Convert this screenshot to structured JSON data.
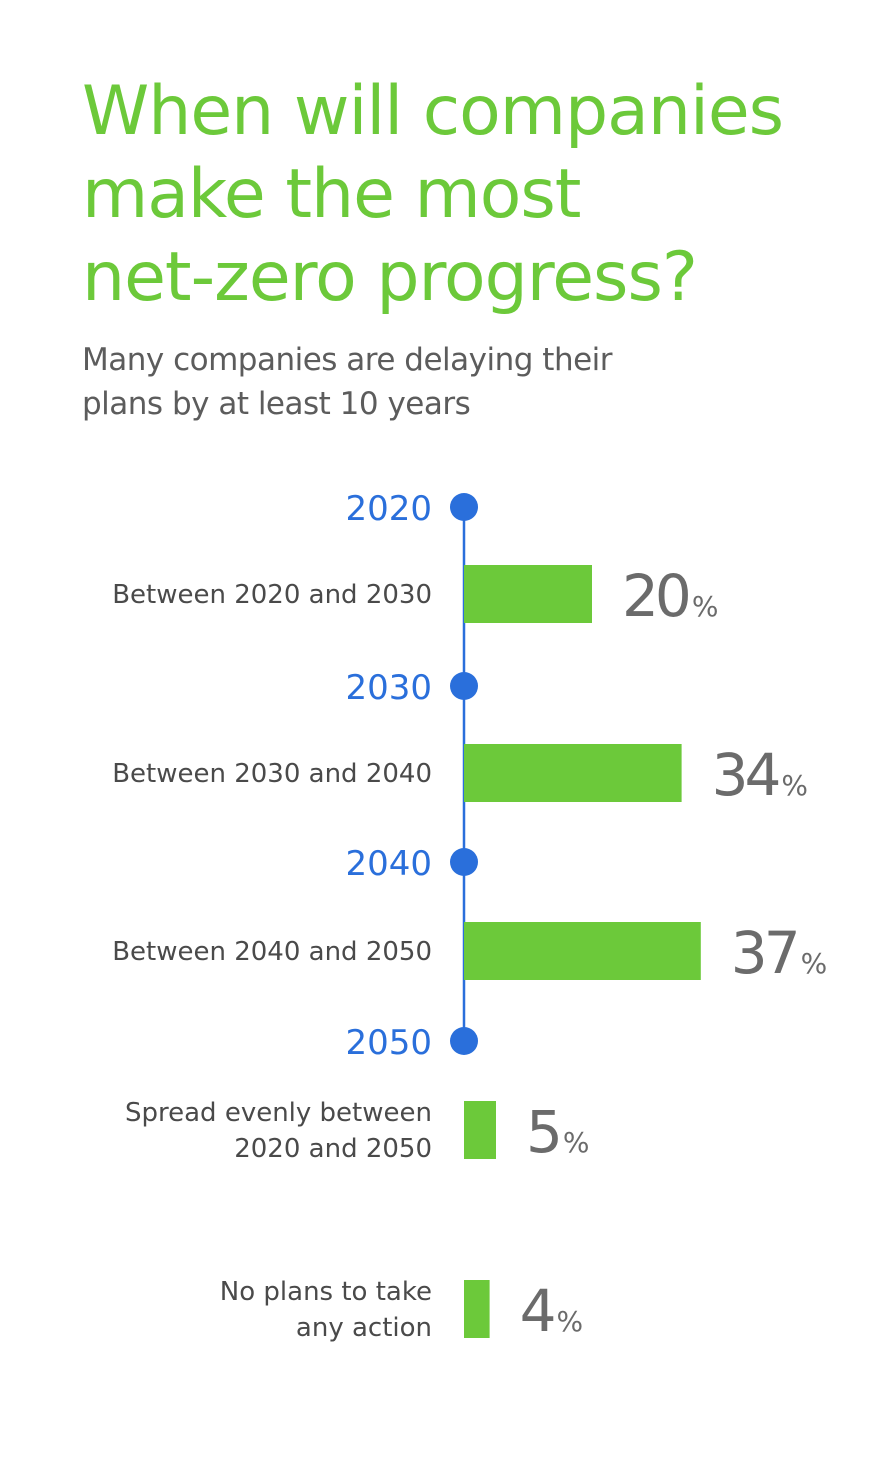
{
  "title_lines": [
    "When will companies",
    "make the most",
    "net-zero progress?"
  ],
  "subtitle_lines": [
    "Many companies are delaying their",
    "plans by at least 10 years"
  ],
  "timeline": {
    "markers": [
      "2020",
      "2030",
      "2040",
      "2050"
    ]
  },
  "colors": {
    "title": "#6cc93a",
    "bar": "#6cc93a",
    "timeline": "#2a6fdb",
    "label": "#4a4a4a",
    "value": "#6b6b6b"
  },
  "chart_data": {
    "type": "bar",
    "orientation": "horizontal",
    "title": "When will companies make the most net-zero progress?",
    "subtitle": "Many companies are delaying their plans by at least 10 years",
    "categories": [
      "Between 2020 and 2030",
      "Between 2030 and 2040",
      "Between 2040 and 2050",
      "Spread evenly between 2020 and 2050",
      "No plans to take any action"
    ],
    "category_lines": [
      [
        "Between 2020 and 2030"
      ],
      [
        "Between 2030 and 2040"
      ],
      [
        "Between 2040 and 2050"
      ],
      [
        "Spread evenly between",
        "2020 and 2050"
      ],
      [
        "No plans to take",
        "any action"
      ]
    ],
    "values": [
      20,
      34,
      37,
      5,
      4
    ],
    "unit": "%",
    "xlim": [
      0,
      40
    ],
    "grid": false,
    "legend": "none"
  }
}
